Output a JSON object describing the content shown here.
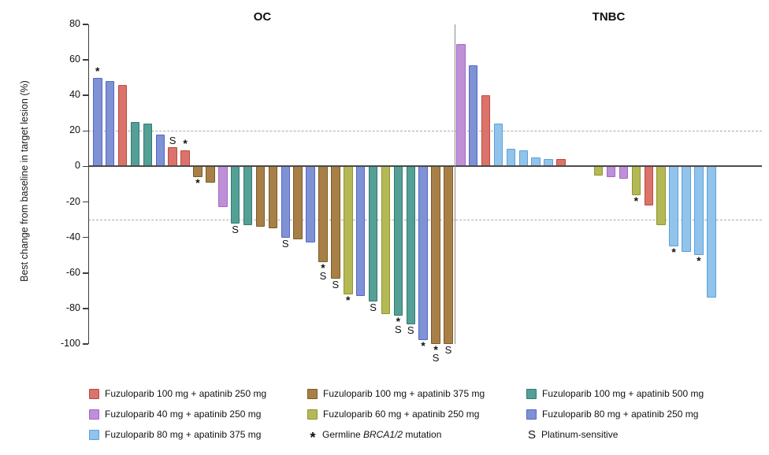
{
  "chart_data": {
    "type": "bar",
    "subtype": "waterfall",
    "ylabel": "Best change from baseline in target lesion (%)",
    "ylim": [
      -100,
      80
    ],
    "yticks": [
      80,
      60,
      40,
      20,
      0,
      -20,
      -40,
      -60,
      -80,
      -100
    ],
    "reference_lines": [
      20,
      -30
    ],
    "grid": "off",
    "legend_position": "bottom",
    "palette": {
      "red100_250": {
        "fill": "#D9736B",
        "stroke": "#C2473B",
        "label": "Fuzuloparib 100 mg + apatinib 250 mg"
      },
      "purple40_250": {
        "fill": "#BD90D8",
        "stroke": "#A764C9",
        "label": "Fuzuloparib 40 mg + apatinib 250 mg"
      },
      "lightblue80_375": {
        "fill": "#92C3EA",
        "stroke": "#5BA0DC",
        "label": "Fuzuloparib 80 mg + apatinib 375 mg"
      },
      "brown100_375": {
        "fill": "#A87F47",
        "stroke": "#7D5B22",
        "label": "Fuzuloparib 100 mg + apatinib 375 mg"
      },
      "green60_250": {
        "fill": "#B5B955",
        "stroke": "#8F9430",
        "label": "Fuzuloparib 60 mg + apatinib 250 mg"
      },
      "teal100_500": {
        "fill": "#55A096",
        "stroke": "#2F7A6E",
        "label": "Fuzuloparib 100 mg + apatinib 500 mg"
      },
      "blue80_250": {
        "fill": "#7E92D4",
        "stroke": "#5565CE",
        "label": "Fuzuloparib 80 mg + apatinib 250 mg"
      }
    },
    "markers": {
      "star_meaning": "Germline BRCA1/2 mutation",
      "s_meaning": "Platinum-sensitive"
    },
    "panels": [
      {
        "name": "OC",
        "bars": [
          {
            "value": 50,
            "color": "blue80_250",
            "marks": [
              "*"
            ]
          },
          {
            "value": 48,
            "color": "blue80_250"
          },
          {
            "value": 46,
            "color": "red100_250"
          },
          {
            "value": 25,
            "color": "teal100_500"
          },
          {
            "value": 24,
            "color": "teal100_500"
          },
          {
            "value": 18,
            "color": "blue80_250"
          },
          {
            "value": 11,
            "color": "red100_250",
            "marks": [
              "S"
            ]
          },
          {
            "value": 9,
            "color": "red100_250",
            "marks": [
              "*"
            ]
          },
          {
            "value": -6,
            "color": "brown100_375",
            "marks": [
              "*"
            ]
          },
          {
            "value": -9,
            "color": "brown100_375"
          },
          {
            "value": -23,
            "color": "purple40_250"
          },
          {
            "value": -32,
            "color": "teal100_500",
            "marks": [
              "S"
            ]
          },
          {
            "value": -33,
            "color": "teal100_500"
          },
          {
            "value": -34,
            "color": "brown100_375"
          },
          {
            "value": -35,
            "color": "brown100_375"
          },
          {
            "value": -40,
            "color": "blue80_250",
            "marks": [
              "S"
            ]
          },
          {
            "value": -41,
            "color": "brown100_375"
          },
          {
            "value": -43,
            "color": "blue80_250"
          },
          {
            "value": -54,
            "color": "brown100_375",
            "marks": [
              "*",
              "S"
            ]
          },
          {
            "value": -63,
            "color": "brown100_375",
            "marks": [
              "S"
            ]
          },
          {
            "value": -72,
            "color": "green60_250",
            "marks": [
              "*"
            ]
          },
          {
            "value": -73,
            "color": "blue80_250"
          },
          {
            "value": -76,
            "color": "teal100_500",
            "marks": [
              "S"
            ]
          },
          {
            "value": -83,
            "color": "green60_250"
          },
          {
            "value": -84,
            "color": "teal100_500",
            "marks": [
              "*",
              "S"
            ]
          },
          {
            "value": -89,
            "color": "teal100_500",
            "marks": [
              "S"
            ]
          },
          {
            "value": -98,
            "color": "blue80_250",
            "marks": [
              "*"
            ]
          },
          {
            "value": -100,
            "color": "brown100_375",
            "marks": [
              "*",
              "S"
            ]
          },
          {
            "value": -100,
            "color": "brown100_375",
            "marks": [
              "S"
            ]
          }
        ]
      },
      {
        "name": "TNBC",
        "gap_after_bar_index": 8,
        "gap_slots": 2,
        "bars": [
          {
            "value": 69,
            "color": "purple40_250"
          },
          {
            "value": 57,
            "color": "blue80_250"
          },
          {
            "value": 40,
            "color": "red100_250"
          },
          {
            "value": 24,
            "color": "lightblue80_375"
          },
          {
            "value": 10,
            "color": "lightblue80_375"
          },
          {
            "value": 9,
            "color": "lightblue80_375"
          },
          {
            "value": 5,
            "color": "lightblue80_375"
          },
          {
            "value": 4,
            "color": "lightblue80_375"
          },
          {
            "value": 4,
            "color": "red100_250"
          },
          {
            "value": -5,
            "color": "green60_250"
          },
          {
            "value": -6,
            "color": "purple40_250"
          },
          {
            "value": -7,
            "color": "purple40_250"
          },
          {
            "value": -16,
            "color": "green60_250",
            "marks": [
              "*"
            ]
          },
          {
            "value": -22,
            "color": "red100_250"
          },
          {
            "value": -33,
            "color": "green60_250"
          },
          {
            "value": -45,
            "color": "lightblue80_375",
            "marks": [
              "*"
            ]
          },
          {
            "value": -48,
            "color": "lightblue80_375"
          },
          {
            "value": -50,
            "color": "lightblue80_375",
            "marks": [
              "*"
            ]
          },
          {
            "value": -74,
            "color": "lightblue80_375"
          }
        ]
      }
    ]
  },
  "legend": {
    "columns": [
      {
        "items": [
          {
            "type": "swatch",
            "color": "red100_250"
          },
          {
            "type": "swatch",
            "color": "purple40_250"
          },
          {
            "type": "swatch",
            "color": "lightblue80_375"
          }
        ]
      },
      {
        "items": [
          {
            "type": "swatch",
            "color": "brown100_375"
          },
          {
            "type": "swatch",
            "color": "green60_250"
          },
          {
            "type": "symbol",
            "symbol": "*",
            "parts": [
              {
                "text": "Germline "
              },
              {
                "text": "BRCA1/2",
                "italic": true
              },
              {
                "text": " mutation"
              }
            ]
          }
        ]
      },
      {
        "items": [
          {
            "type": "swatch",
            "color": "teal100_500"
          },
          {
            "type": "swatch",
            "color": "blue80_250"
          },
          {
            "type": "symbol",
            "symbol": "S",
            "parts": [
              {
                "text": "Platinum-sensitive"
              }
            ]
          }
        ]
      }
    ]
  }
}
